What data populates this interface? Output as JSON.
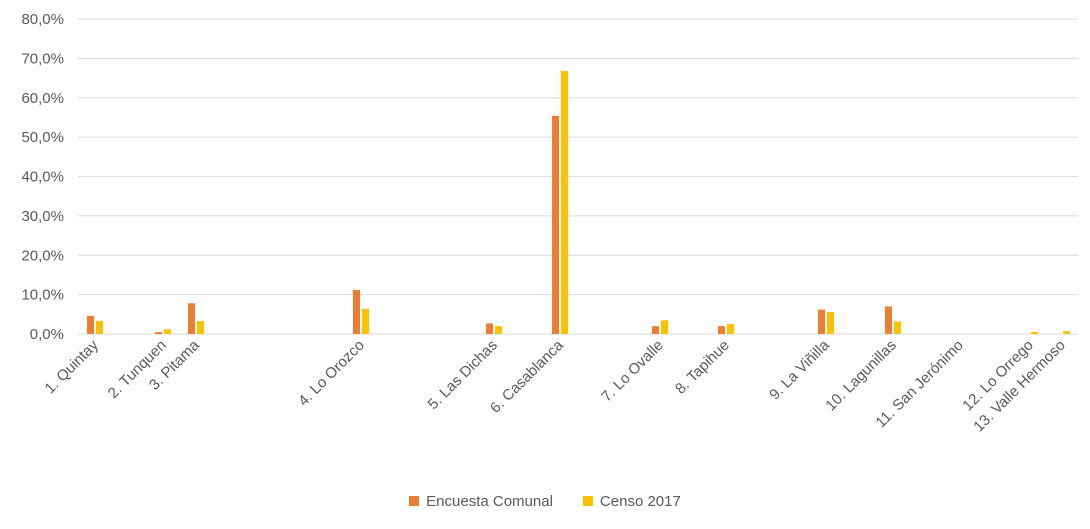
{
  "chart_data": {
    "type": "bar",
    "categories": [
      "1. Quintay",
      "2. Tunquen",
      "3. Pitama",
      "4. Lo Orozco",
      "5. Las Dichas",
      "6. Casablanca",
      "7. Lo Ovalle",
      "8. Tapihue",
      "9. La Viñilla",
      "10. Lagunillas",
      "11. San Jerónimo",
      "12. Lo Orrego",
      "13. Valle Hermoso"
    ],
    "series": [
      {
        "name": "Encuesta Comunal",
        "color": "#ED7D31",
        "values": [
          4.6,
          0.5,
          7.8,
          11.2,
          2.7,
          55.4,
          2.0,
          2.0,
          6.2,
          7.0,
          0.0,
          0.0,
          0.0
        ]
      },
      {
        "name": "Censo 2017",
        "color": "#FFC000",
        "values": [
          3.3,
          1.2,
          3.3,
          6.4,
          2.0,
          66.8,
          3.5,
          2.5,
          5.6,
          3.2,
          0.0,
          0.5,
          0.7
        ]
      }
    ],
    "y_ticks": [
      "0,0%",
      "10,0%",
      "20,0%",
      "30,0%",
      "40,0%",
      "50,0%",
      "60,0%",
      "70,0%",
      "80,0%"
    ],
    "ylim": [
      0,
      80
    ],
    "title": "",
    "xlabel": "",
    "ylabel": "",
    "grid": true,
    "legend_position": "bottom"
  }
}
